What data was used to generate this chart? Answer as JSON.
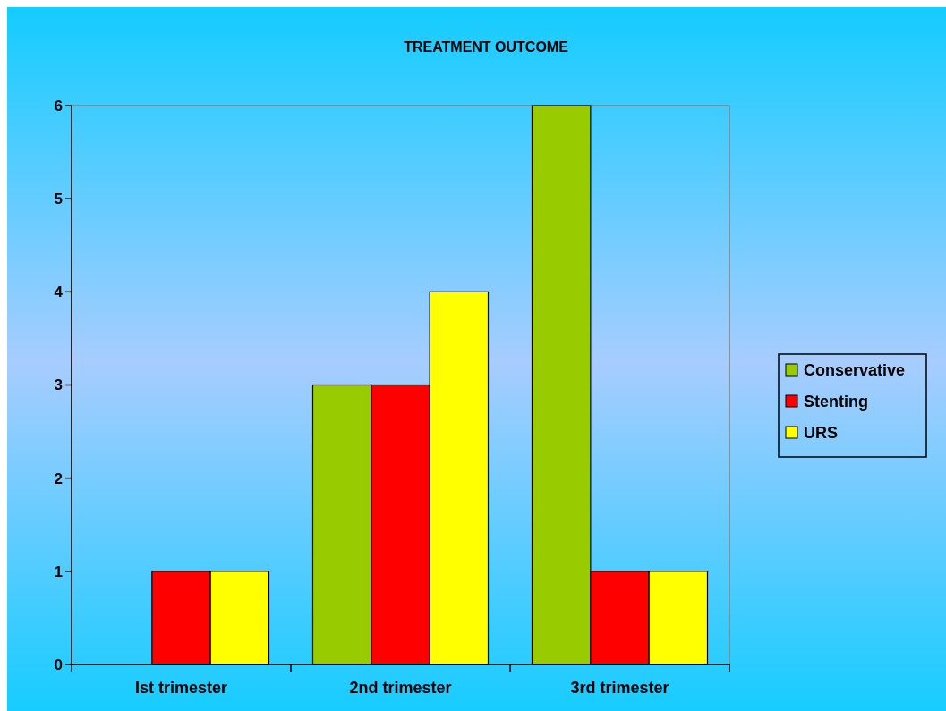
{
  "chart_data": {
    "type": "bar",
    "title": "TREATMENT OUTCOME",
    "categories": [
      "Ist trimester",
      "2nd trimester",
      "3rd trimester"
    ],
    "series": [
      {
        "name": "Conservative",
        "color": "#99cc00",
        "values": [
          0,
          3,
          6
        ]
      },
      {
        "name": "Stenting",
        "color": "#ff0000",
        "values": [
          1,
          3,
          1
        ]
      },
      {
        "name": "URS",
        "color": "#ffff00",
        "values": [
          1,
          4,
          1
        ]
      }
    ],
    "ylim": [
      0,
      6
    ],
    "yticks": [
      0,
      1,
      2,
      3,
      4,
      5,
      6
    ],
    "legend": "right"
  }
}
